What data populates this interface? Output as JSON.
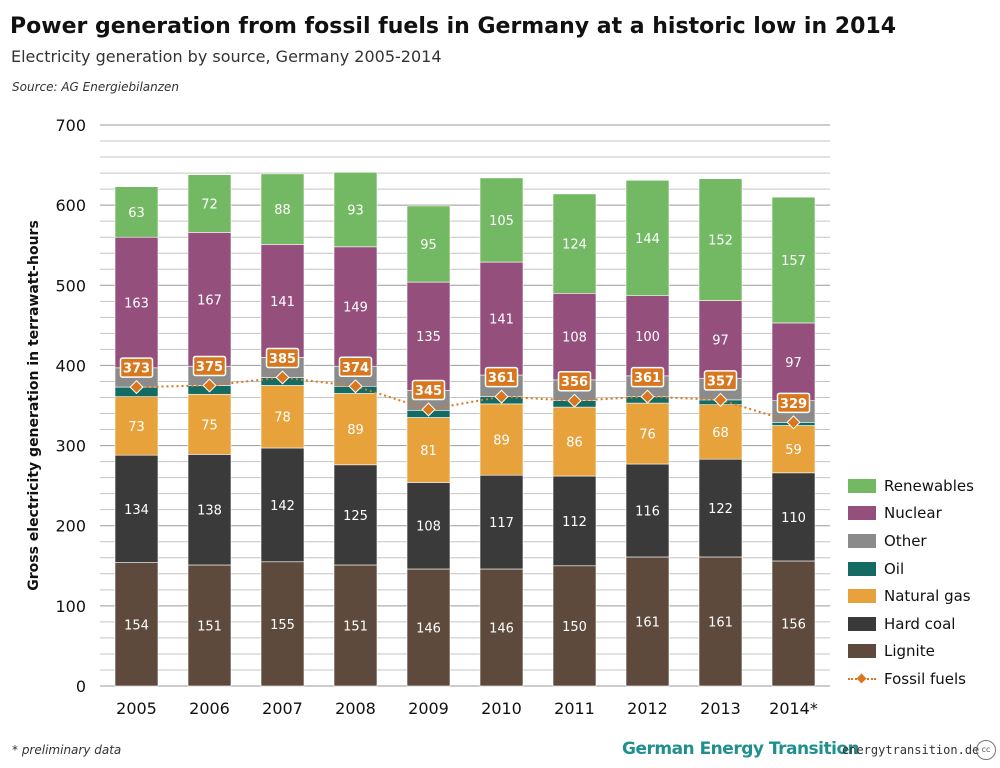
{
  "title": "Power generation from fossil fuels in Germany at a historic low in 2014",
  "subtitle": "Electricity generation by source, Germany 2005-2014",
  "source": "Source: AG Energiebilanzen",
  "footnote": "* preliminary data",
  "brand": "German Energy Transition",
  "site": "energytransition.de",
  "cc_label": "cc",
  "colors": {
    "Lignite": "#5e4a3d",
    "Hard coal": "#3a3a3a",
    "Natural gas": "#e8a23b",
    "Oil": "#136b64",
    "Other": "#8b8b8b",
    "Nuclear": "#954f7d",
    "Renewables": "#73b964",
    "Fossil fuels": "#d9771e"
  },
  "chart_data": {
    "type": "bar",
    "stacked": true,
    "categories": [
      "2005",
      "2006",
      "2007",
      "2008",
      "2009",
      "2010",
      "2011",
      "2012",
      "2013",
      "2014*"
    ],
    "ylabel": "Gross electricity generation in terrawatt-hours",
    "xlabel": "",
    "ylim": [
      0,
      700
    ],
    "yticks": [
      0,
      100,
      200,
      300,
      400,
      500,
      600,
      700
    ],
    "grid": true,
    "legend_position": "right",
    "series": [
      {
        "name": "Lignite",
        "values": [
          154,
          151,
          155,
          151,
          146,
          146,
          150,
          161,
          161,
          156
        ],
        "labeled": true
      },
      {
        "name": "Hard coal",
        "values": [
          134,
          138,
          142,
          125,
          108,
          117,
          112,
          116,
          122,
          110
        ],
        "labeled": true
      },
      {
        "name": "Natural gas",
        "values": [
          73,
          75,
          78,
          89,
          81,
          89,
          86,
          76,
          68,
          59
        ],
        "labeled": true
      },
      {
        "name": "Oil",
        "values": [
          12,
          11,
          10,
          9,
          9,
          9,
          8,
          8,
          6,
          4
        ],
        "labeled": false
      },
      {
        "name": "Other",
        "values": [
          24,
          24,
          25,
          25,
          25,
          27,
          26,
          26,
          27,
          27
        ],
        "labeled": false
      },
      {
        "name": "Nuclear",
        "values": [
          163,
          167,
          141,
          149,
          135,
          141,
          108,
          100,
          97,
          97
        ],
        "labeled": true
      },
      {
        "name": "Renewables",
        "values": [
          63,
          72,
          88,
          93,
          95,
          105,
          124,
          144,
          152,
          157
        ],
        "labeled": true
      }
    ],
    "line_series": {
      "name": "Fossil fuels",
      "values": [
        373,
        375,
        385,
        374,
        345,
        361,
        356,
        361,
        357,
        329
      ]
    },
    "legend_order": [
      "Renewables",
      "Nuclear",
      "Other",
      "Oil",
      "Natural gas",
      "Hard coal",
      "Lignite",
      "Fossil fuels"
    ]
  }
}
